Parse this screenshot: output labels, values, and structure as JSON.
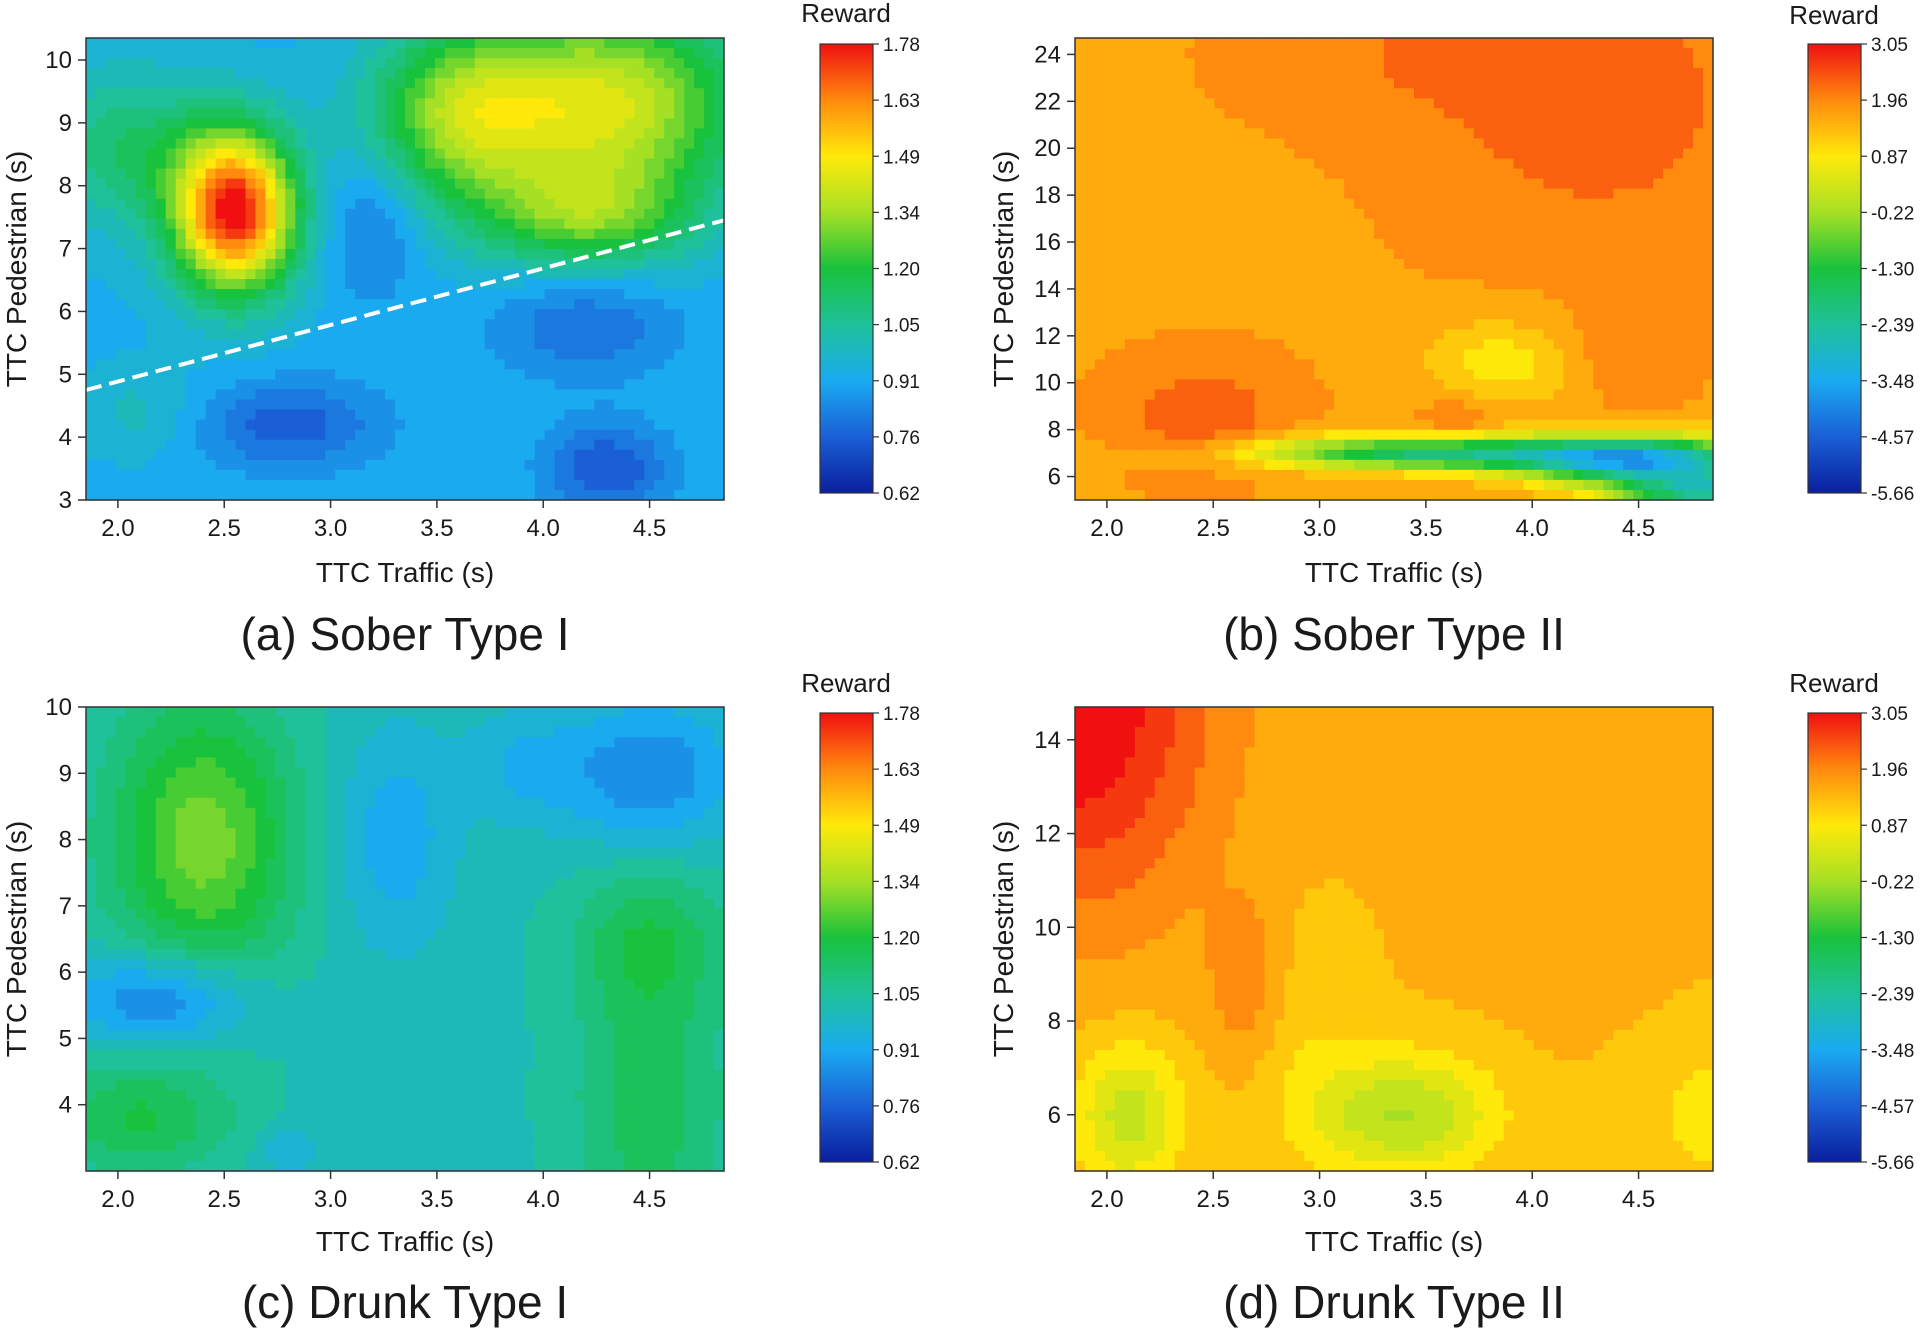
{
  "figure": {
    "panels": [
      {
        "caption": "(a) Sober Type I",
        "xlabel": "TTC Traffic (s)",
        "ylabel": "TTC Pedestrian (s)",
        "colorbar_title": "Reward"
      },
      {
        "caption": "(b) Sober Type II",
        "xlabel": "TTC Traffic (s)",
        "ylabel": "TTC Pedestrian (s)",
        "colorbar_title": "Reward"
      },
      {
        "caption": "(c) Drunk Type I",
        "xlabel": "TTC Traffic (s)",
        "ylabel": "TTC Pedestrian (s)",
        "colorbar_title": "Reward"
      },
      {
        "caption": "(d) Drunk Type II",
        "xlabel": "TTC Traffic (s)",
        "ylabel": "TTC Pedestrian (s)",
        "colorbar_title": "Reward"
      }
    ]
  },
  "chart_data": [
    {
      "type": "heatmap",
      "title": "(a) Sober Type I",
      "xlabel": "TTC Traffic (s)",
      "ylabel": "TTC Pedestrian (s)",
      "xlim": [
        1.85,
        4.85
      ],
      "ylim": [
        3.0,
        10.35
      ],
      "xticks": [
        "2.0",
        "2.5",
        "3.0",
        "3.5",
        "4.0",
        "4.5"
      ],
      "yticks": [
        "3",
        "4",
        "5",
        "6",
        "7",
        "8",
        "9",
        "10"
      ],
      "colorbar": {
        "title": "Reward",
        "min": 0.62,
        "max": 1.78,
        "ticks": [
          "1.78",
          "1.63",
          "1.49",
          "1.34",
          "1.20",
          "1.05",
          "0.91",
          "0.76",
          "0.62"
        ]
      },
      "base": 0.92,
      "features": [
        {
          "x": 2.55,
          "y": 7.6,
          "amp": 0.86,
          "sx": 0.2,
          "sy": 0.9
        },
        {
          "x": 2.05,
          "y": 8.6,
          "amp": 0.2,
          "sx": 0.28,
          "sy": 0.9
        },
        {
          "x": 3.2,
          "y": 7.4,
          "amp": -0.12,
          "sx": 0.17,
          "sy": 0.8
        },
        {
          "x": 3.6,
          "y": 9.1,
          "amp": 0.36,
          "sx": 0.3,
          "sy": 1.0
        },
        {
          "x": 4.3,
          "y": 9.3,
          "amp": 0.5,
          "sx": 0.45,
          "sy": 1.1
        },
        {
          "x": 4.2,
          "y": 7.5,
          "amp": 0.3,
          "sx": 0.35,
          "sy": 0.6
        },
        {
          "x": 2.8,
          "y": 4.2,
          "amp": -0.16,
          "sx": 0.3,
          "sy": 0.5
        },
        {
          "x": 4.3,
          "y": 3.5,
          "amp": -0.18,
          "sx": 0.2,
          "sy": 0.5
        },
        {
          "x": 4.2,
          "y": 5.8,
          "amp": -0.13,
          "sx": 0.3,
          "sy": 0.6
        },
        {
          "x": 2.1,
          "y": 4.4,
          "amp": 0.08,
          "sx": 0.2,
          "sy": 0.5
        }
      ],
      "boundary_line": {
        "style": "dashed",
        "color": "#ffffff",
        "from": [
          1.85,
          4.75
        ],
        "to": [
          4.85,
          7.45
        ]
      }
    },
    {
      "type": "heatmap",
      "title": "(b) Sober Type II",
      "xlabel": "TTC Traffic (s)",
      "ylabel": "TTC Pedestrian (s)",
      "xlim": [
        1.85,
        4.85
      ],
      "ylim": [
        5.0,
        24.7
      ],
      "xticks": [
        "2.0",
        "2.5",
        "3.0",
        "3.5",
        "4.0",
        "4.5"
      ],
      "yticks": [
        "6",
        "8",
        "10",
        "12",
        "14",
        "16",
        "18",
        "20",
        "22",
        "24"
      ],
      "colorbar": {
        "title": "Reward",
        "min": -5.66,
        "max": 3.05,
        "ticks": [
          "3.05",
          "1.96",
          "0.87",
          "-0.22",
          "-1.30",
          "-2.39",
          "-3.48",
          "-4.57",
          "-5.66"
        ]
      },
      "base": 1.75,
      "features": [
        {
          "x": 4.3,
          "y": 22.0,
          "amp": 0.65,
          "sx": 0.5,
          "sy": 4.0
        },
        {
          "x": 3.5,
          "y": 24.0,
          "amp": 0.35,
          "sx": 0.5,
          "sy": 2.0
        },
        {
          "x": 2.45,
          "y": 8.6,
          "amp": 0.7,
          "sx": 0.25,
          "sy": 1.5
        },
        {
          "x": 3.65,
          "y": 8.4,
          "amp": 0.45,
          "sx": 0.12,
          "sy": 0.8
        },
        {
          "x": 4.45,
          "y": 11.5,
          "amp": 0.4,
          "sx": 0.18,
          "sy": 1.5
        },
        {
          "x": 3.85,
          "y": 10.8,
          "amp": -0.9,
          "sx": 0.25,
          "sy": 1.3
        },
        {
          "x": 3.5,
          "y": 7.0,
          "amp": -3.6,
          "sx": 0.55,
          "sy": 0.5
        },
        {
          "x": 4.5,
          "y": 6.7,
          "amp": -5.0,
          "sx": 0.4,
          "sy": 0.7
        },
        {
          "x": 4.85,
          "y": 5.3,
          "amp": -4.0,
          "sx": 0.3,
          "sy": 0.6
        }
      ]
    },
    {
      "type": "heatmap",
      "title": "(c) Drunk Type I",
      "xlabel": "TTC Traffic (s)",
      "ylabel": "TTC Pedestrian (s)",
      "xlim": [
        1.85,
        4.85
      ],
      "ylim": [
        3.0,
        10.0
      ],
      "xticks": [
        "2.0",
        "2.5",
        "3.0",
        "3.5",
        "4.0",
        "4.5"
      ],
      "yticks": [
        "4",
        "5",
        "6",
        "7",
        "8",
        "9",
        "10"
      ],
      "colorbar": {
        "title": "Reward",
        "min": 0.62,
        "max": 1.78,
        "ticks": [
          "1.78",
          "1.63",
          "1.49",
          "1.34",
          "1.20",
          "1.05",
          "0.91",
          "0.76",
          "0.62"
        ]
      },
      "base": 1.02,
      "features": [
        {
          "x": 2.4,
          "y": 8.0,
          "amp": 0.28,
          "sx": 0.3,
          "sy": 1.5
        },
        {
          "x": 2.1,
          "y": 3.8,
          "amp": 0.16,
          "sx": 0.3,
          "sy": 0.6
        },
        {
          "x": 4.5,
          "y": 4.0,
          "amp": 0.14,
          "sx": 0.25,
          "sy": 1.5
        },
        {
          "x": 4.5,
          "y": 6.5,
          "amp": 0.14,
          "sx": 0.25,
          "sy": 0.8
        },
        {
          "x": 2.2,
          "y": 5.6,
          "amp": -0.22,
          "sx": 0.3,
          "sy": 0.5
        },
        {
          "x": 3.3,
          "y": 8.0,
          "amp": -0.12,
          "sx": 0.2,
          "sy": 1.2
        },
        {
          "x": 4.5,
          "y": 9.0,
          "amp": -0.18,
          "sx": 0.3,
          "sy": 0.8
        },
        {
          "x": 3.9,
          "y": 9.1,
          "amp": -0.08,
          "sx": 0.2,
          "sy": 0.6
        },
        {
          "x": 2.8,
          "y": 3.3,
          "amp": -0.08,
          "sx": 0.1,
          "sy": 0.3
        }
      ]
    },
    {
      "type": "heatmap",
      "title": "(d) Drunk Type II",
      "xlabel": "TTC Traffic (s)",
      "ylabel": "TTC Pedestrian (s)",
      "xlim": [
        1.85,
        4.85
      ],
      "ylim": [
        4.8,
        14.7
      ],
      "xticks": [
        "2.0",
        "2.5",
        "3.0",
        "3.5",
        "4.0",
        "4.5"
      ],
      "yticks": [
        "6",
        "8",
        "10",
        "12",
        "14"
      ],
      "colorbar": {
        "title": "Reward",
        "min": -5.66,
        "max": 3.05,
        "ticks": [
          "3.05",
          "1.96",
          "0.87",
          "-0.22",
          "-1.30",
          "-2.39",
          "-3.48",
          "-4.57",
          "-5.66"
        ]
      },
      "base": 1.45,
      "features": [
        {
          "x": 1.85,
          "y": 14.7,
          "amp": 1.8,
          "sx": 0.45,
          "sy": 3.0
        },
        {
          "x": 2.65,
          "y": 8.9,
          "amp": 0.6,
          "sx": 0.12,
          "sy": 1.2
        },
        {
          "x": 4.4,
          "y": 11.5,
          "amp": 0.3,
          "sx": 0.3,
          "sy": 2.0
        },
        {
          "x": 2.1,
          "y": 6.0,
          "amp": -1.3,
          "sx": 0.18,
          "sy": 1.1
        },
        {
          "x": 3.4,
          "y": 6.0,
          "amp": -1.5,
          "sx": 0.3,
          "sy": 0.9
        },
        {
          "x": 4.85,
          "y": 6.0,
          "amp": -0.5,
          "sx": 0.3,
          "sy": 1.5
        },
        {
          "x": 2.95,
          "y": 7.5,
          "amp": -0.3,
          "sx": 0.2,
          "sy": 2.0
        }
      ]
    }
  ]
}
